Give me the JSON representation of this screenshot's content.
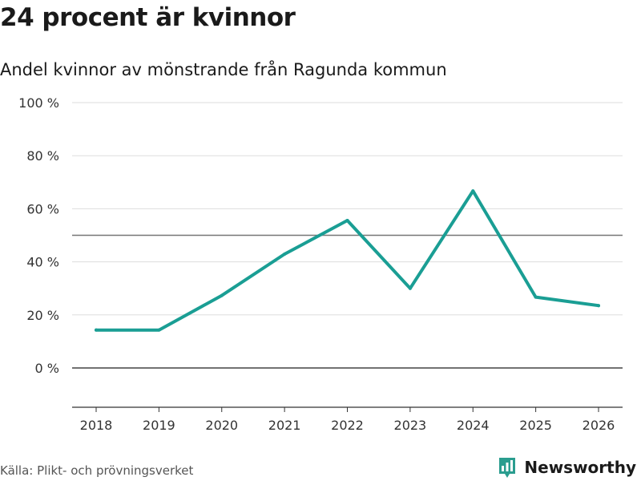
{
  "title": "24 procent är kvinnor",
  "subtitle": "Andel kvinnor av mönstrande från Ragunda kommun",
  "source": "Källa: Plikt- och prövningsverket",
  "brand": {
    "name": "Newsworthy",
    "icon": "bar-chart-speech-bubble-icon",
    "color": "#2a9d8f"
  },
  "chart_data": {
    "type": "line",
    "x": [
      2018,
      2019,
      2020,
      2021,
      2022,
      2023,
      2024,
      2025,
      2026
    ],
    "x_tick_labels": [
      "2018",
      "2019",
      "2020",
      "2021",
      "2022",
      "2023",
      "2024",
      "2025",
      "2026"
    ],
    "series": [
      {
        "color": "#1a9e94",
        "values": [
          14.3,
          14.3,
          27.3,
          42.9,
          55.6,
          30.0,
          66.7,
          26.7,
          23.5
        ]
      }
    ],
    "y_ticks": [
      0,
      20,
      40,
      60,
      80,
      100
    ],
    "y_tick_labels": [
      "0 %",
      "20 %",
      "40 %",
      "60 %",
      "80 %",
      "100 %"
    ],
    "ylim": [
      -15,
      100
    ],
    "reference_line": 50,
    "grid": true,
    "xlabel": "",
    "ylabel": ""
  }
}
